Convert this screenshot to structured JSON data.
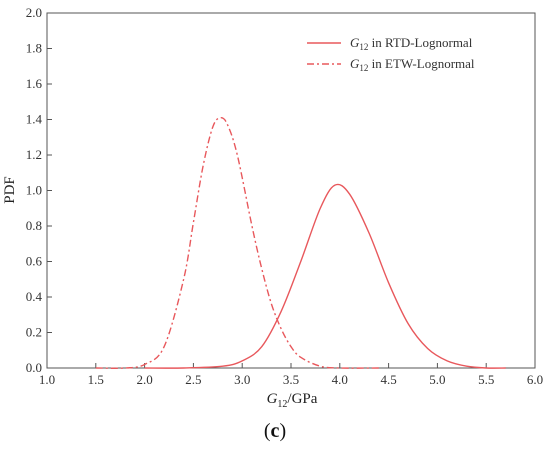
{
  "chart_data": {
    "type": "line",
    "title": "",
    "xlabel": {
      "symbol": "G",
      "subscript": "12",
      "unit": "/GPa"
    },
    "ylabel": "PDF",
    "xlim": [
      1.0,
      6.0
    ],
    "ylim": [
      0.0,
      2.0
    ],
    "x_ticks": [
      "1.0",
      "1.5",
      "2.0",
      "2.5",
      "3.0",
      "3.5",
      "4.0",
      "4.5",
      "5.0",
      "5.5",
      "6.0"
    ],
    "y_ticks": [
      "0.0",
      "0.2",
      "0.4",
      "0.6",
      "0.8",
      "1.0",
      "1.2",
      "1.4",
      "1.6",
      "1.8",
      "2.0"
    ],
    "grid": false,
    "legend_position": "top-right",
    "series": [
      {
        "name": {
          "symbol": "G",
          "subscript": "12",
          "text": " in RTD-Lognormal"
        },
        "line_style": "solid",
        "color": "#e8585c",
        "x": [
          2.0,
          2.4,
          2.8,
          3.0,
          3.2,
          3.4,
          3.6,
          3.8,
          3.95,
          4.1,
          4.3,
          4.5,
          4.7,
          4.9,
          5.1,
          5.3,
          5.5,
          5.7
        ],
        "y": [
          0.0,
          0.0,
          0.01,
          0.04,
          0.12,
          0.32,
          0.6,
          0.9,
          1.03,
          0.98,
          0.76,
          0.48,
          0.25,
          0.11,
          0.04,
          0.01,
          0.0,
          0.0
        ]
      },
      {
        "name": {
          "symbol": "G",
          "subscript": "12",
          "text": " in ETW-Lognormal"
        },
        "line_style": "dash-dot",
        "color": "#e8585c",
        "x": [
          1.5,
          1.8,
          2.0,
          2.2,
          2.4,
          2.5,
          2.6,
          2.7,
          2.78,
          2.85,
          2.95,
          3.1,
          3.2,
          3.3,
          3.4,
          3.5,
          3.6,
          3.8,
          4.0,
          4.4
        ],
        "y": [
          0.0,
          0.0,
          0.02,
          0.12,
          0.5,
          0.82,
          1.14,
          1.36,
          1.41,
          1.37,
          1.2,
          0.8,
          0.56,
          0.36,
          0.22,
          0.12,
          0.06,
          0.01,
          0.0,
          0.0
        ]
      }
    ]
  },
  "caption": {
    "open": "(",
    "letter": "c",
    "close": ")"
  }
}
